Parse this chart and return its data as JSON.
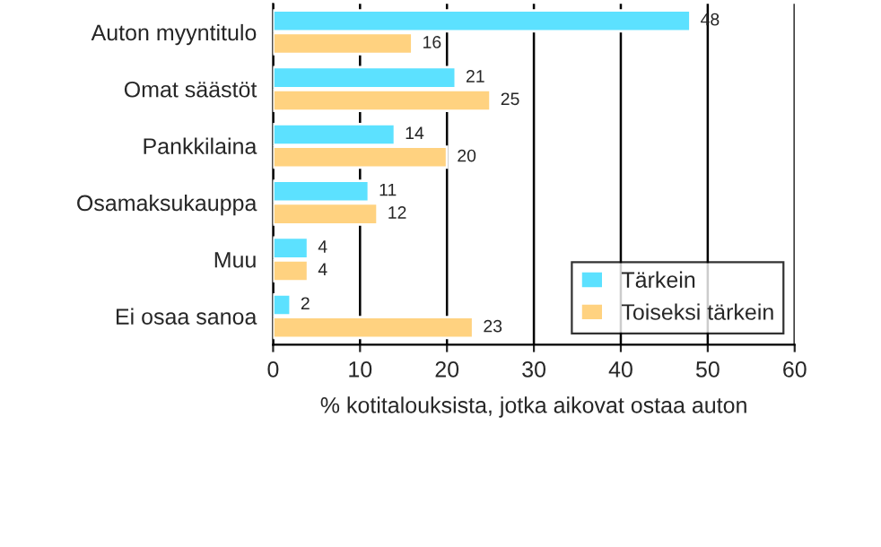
{
  "chart_data": {
    "type": "bar",
    "orientation": "horizontal",
    "xlabel": "% kotitalouksista, jotka aikovat ostaa auton",
    "categories": [
      "Auton myyntitulo",
      "Omat säästöt",
      "Pankkilaina",
      "Osamaksukauppa",
      "Muu",
      "Ei osaa sanoa"
    ],
    "series": [
      {
        "name": "Tärkein",
        "color": "#5ce1ff",
        "values": [
          48,
          21,
          14,
          11,
          4,
          2
        ]
      },
      {
        "name": "Toiseksi tärkein",
        "color": "#ffd280",
        "values": [
          16,
          25,
          20,
          12,
          4,
          23
        ]
      }
    ],
    "xlim": [
      0,
      60
    ],
    "xticks": [
      0,
      10,
      20,
      30,
      40,
      50,
      60
    ],
    "grid": "x",
    "legend": "bottom right",
    "data_labels": true
  }
}
